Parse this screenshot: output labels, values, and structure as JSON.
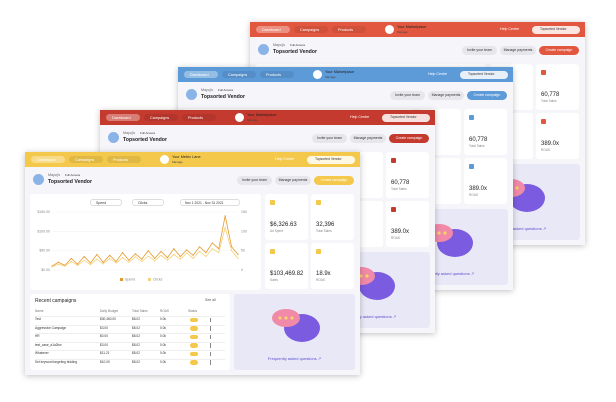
{
  "windows": [
    {
      "color": "#e2573f",
      "nav": [
        "Dashboard",
        "Campaigns",
        "Products"
      ],
      "store": "Your Marketplace",
      "store_sub": "Manage",
      "help": "Help Centre",
      "vendor": "Topsorted Vendor",
      "user": "Mayuj's",
      "access": "Full Access",
      "title": "Topsorted Vendor",
      "buttons": [
        "Invite your team",
        "Manage payments",
        "Create campaign"
      ],
      "stats": [
        {
          "value": "60,778",
          "label": "Total Sales"
        },
        {
          "value": "389.0x",
          "label": "ROAS"
        }
      ],
      "faq": "Frequently asked questions ↗"
    },
    {
      "color": "#5d9bd8",
      "nav": [
        "Dashboard",
        "Campaigns",
        "Products"
      ],
      "store": "Your Marketplace",
      "store_sub": "Manage",
      "help": "Help Centre",
      "vendor": "Topsorted Vendor",
      "user": "Mayuj's",
      "access": "Full Access",
      "title": "Topsorted Vendor",
      "buttons": [
        "Invite your team",
        "Manage payments",
        "Create campaign"
      ],
      "stats": [
        {
          "value": "60,778",
          "label": "Total Sales"
        },
        {
          "value": "389.0x",
          "label": "ROAS"
        }
      ],
      "faq": "Frequently asked questions ↗"
    },
    {
      "color": "#c43a2f",
      "nav": [
        "Dashboard",
        "Campaigns",
        "Products"
      ],
      "store": "Your Marketplace",
      "store_sub": "Manage",
      "help": "Help Centre",
      "vendor": "Topsorted Vendor",
      "user": "Mayuj's",
      "access": "Full Access",
      "title": "Topsorted Vendor",
      "buttons": [
        "Invite your team",
        "Manage payments",
        "Create campaign"
      ],
      "stats": [
        {
          "value": "60,778",
          "label": "Total Sales"
        },
        {
          "value": "389.0x",
          "label": "ROAS"
        }
      ],
      "faq": "Frequently asked questions ↗"
    },
    {
      "color": "#f4c84a",
      "nav": [
        "Dashboard",
        "Campaigns",
        "Products"
      ],
      "store": "Your Metric Lane",
      "store_sub": "Manage",
      "help": "Help Centre",
      "vendor": "Topsorted Vendor",
      "user": "Mayuj's",
      "access": "Full Access",
      "title": "Topsorted Vendor",
      "buttons": [
        "Invite your team",
        "Manage payments",
        "Create campaign"
      ],
      "stats": [
        {
          "value": "$6,326.63",
          "label": "Ad Spent"
        },
        {
          "value": "32,396",
          "label": "Total Sales"
        },
        {
          "value": "$103,469.82",
          "label": "Sales"
        },
        {
          "value": "18.9x",
          "label": "ROAS"
        }
      ],
      "faq": "Frequently asked questions ↗",
      "chart": {
        "type": "line",
        "selectors": [
          "Spend",
          "Clicks"
        ],
        "date_range": "Nov 1 2021 - Nov 31 2021",
        "ylim": [
          0,
          150
        ],
        "yticks": [
          {
            "value": 0,
            "label": "$0.00"
          },
          {
            "value": 50,
            "label": "$50.00"
          },
          {
            "value": 100,
            "label": "$100.00"
          },
          {
            "value": 150,
            "label": "$150.00"
          }
        ],
        "y2lim": [
          0,
          150
        ],
        "y2ticks": [
          0,
          50,
          100,
          150
        ],
        "series": [
          {
            "name": "Spend",
            "color": "#e69a2e",
            "values": [
              10,
              20,
              12,
              30,
              15,
              35,
              18,
              40,
              20,
              38,
              22,
              45,
              25,
              42,
              28,
              50,
              30,
              48,
              32,
              55,
              35,
              52,
              38,
              60,
              45,
              70,
              55,
              140,
              60,
              40
            ]
          },
          {
            "name": "Clicks",
            "color": "#f3d27a",
            "axis": "y2",
            "values": [
              8,
              15,
              10,
              22,
              12,
              25,
              14,
              28,
              16,
              30,
              18,
              32,
              20,
              34,
              22,
              36,
              24,
              38,
              26,
              40,
              28,
              44,
              30,
              48,
              35,
              55,
              45,
              110,
              50,
              30
            ]
          }
        ]
      },
      "table": {
        "title": "Recent campaigns",
        "link": "See all",
        "columns": [
          "Name",
          "Daily Budget",
          "Total Sales",
          "ROAS",
          "Status"
        ],
        "rows": [
          [
            "Test",
            "$30,460.00",
            "$8.02",
            "0.0k"
          ],
          [
            "Aggressive Campaign",
            "$3.00",
            "$8.02",
            "0.0k"
          ],
          [
            "HR",
            "$0.00",
            "$8.02",
            "0.0k"
          ],
          [
            "test_case_a1a2bw",
            "$3.00",
            "$8.02",
            "0.0k"
          ],
          [
            "Whatever",
            "$11.21",
            "$8.02",
            "0.0k"
          ],
          [
            "Set keyword targeting bidding",
            "$10.00",
            "$8.02",
            "0.0k"
          ]
        ]
      }
    }
  ]
}
